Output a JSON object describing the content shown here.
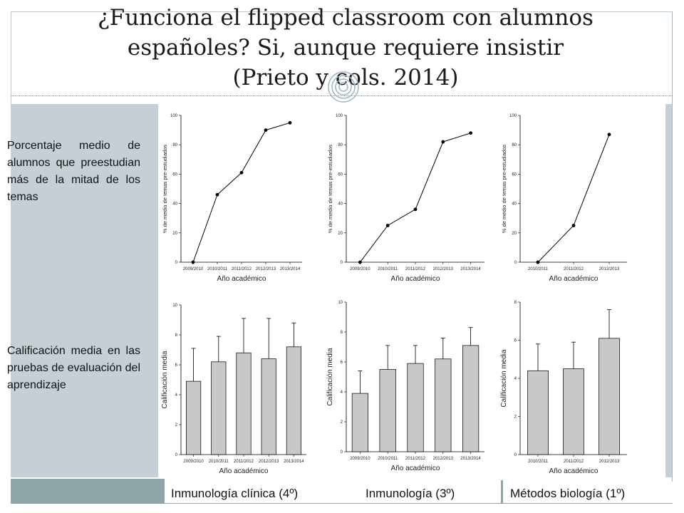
{
  "title": {
    "line1": "¿Funciona el flipped classroom con alumnos",
    "line2": "españoles? Si, aunque requiere insistir",
    "line3": "(Prieto y cols. 2014)"
  },
  "row_labels": {
    "top": "Porcentaje medio de alumnos que preestudian más de la mitad de los temas",
    "bottom": "Calificación media en las pruebas de evaluación del aprendizaje"
  },
  "courses": [
    "Inmunología clínica (4º)",
    "Inmunología (3º)",
    "Métodos biología (1º)"
  ],
  "colors": {
    "bar_fill": "#c8c8c8",
    "line": "#000000",
    "side_panel": "#c6cfd5",
    "footer_accent": "#8ea6aa"
  },
  "icons": {
    "swirl": "concentric-swirl-icon"
  },
  "chart_data": [
    {
      "type": "line",
      "categories": [
        "2009/2010",
        "2010/2011",
        "2011/2012",
        "2012/2013",
        "2013/2014"
      ],
      "values": [
        0,
        46,
        61,
        90,
        95
      ],
      "xlabel": "Año académico",
      "ylabel": "% de medio de temas pre-estudiados",
      "ylim": [
        0,
        100
      ],
      "yticks": [
        0,
        20,
        40,
        60,
        80,
        100
      ]
    },
    {
      "type": "line",
      "categories": [
        "2009/2010",
        "2010/2011",
        "2011/2012",
        "2012/2013",
        "2013/2014"
      ],
      "values": [
        0,
        25,
        36,
        82,
        88
      ],
      "xlabel": "Año académico",
      "ylabel": "% de medio de temas pre-estudiados",
      "ylim": [
        0,
        100
      ],
      "yticks": [
        0,
        20,
        40,
        60,
        80,
        100
      ]
    },
    {
      "type": "line",
      "categories": [
        "2010/2011",
        "2011/2012",
        "2012/2013"
      ],
      "values": [
        0,
        25,
        87
      ],
      "xlabel": "Año académico",
      "ylabel": "% de medio de temas pre-estudiados",
      "ylim": [
        0,
        100
      ],
      "yticks": [
        0,
        20,
        40,
        60,
        80,
        100
      ]
    },
    {
      "type": "bar",
      "categories": [
        "2009/2010",
        "2010/2011",
        "2011/2012",
        "2012/2013",
        "2013/2014"
      ],
      "values": [
        4.9,
        6.2,
        6.8,
        6.4,
        7.2
      ],
      "errors": [
        2.2,
        1.7,
        2.3,
        2.7,
        1.6
      ],
      "xlabel": "Año académico",
      "ylabel": "Calificación media",
      "ylim": [
        0,
        10
      ],
      "yticks": [
        0,
        2,
        4,
        6,
        8,
        10
      ]
    },
    {
      "type": "bar",
      "categories": [
        "2009/2010",
        "2010/2011",
        "2011/2012",
        "2012/2013",
        "2013/2014"
      ],
      "values": [
        3.9,
        5.5,
        5.9,
        6.2,
        7.1
      ],
      "errors": [
        1.5,
        1.6,
        1.2,
        1.4,
        1.2
      ],
      "xlabel": "Año académico",
      "ylabel": "Calificación media",
      "ylim": [
        0,
        10
      ],
      "yticks": [
        0,
        2,
        4,
        6,
        8,
        10
      ]
    },
    {
      "type": "bar",
      "categories": [
        "2010/2011",
        "2011/2012",
        "2012/2013"
      ],
      "values": [
        4.4,
        4.5,
        6.1
      ],
      "errors": [
        1.4,
        1.4,
        1.5
      ],
      "xlabel": "Año académico",
      "ylabel": "Calificación media",
      "ylim": [
        0,
        8
      ],
      "yticks": [
        0,
        2,
        4,
        6,
        8
      ]
    }
  ]
}
